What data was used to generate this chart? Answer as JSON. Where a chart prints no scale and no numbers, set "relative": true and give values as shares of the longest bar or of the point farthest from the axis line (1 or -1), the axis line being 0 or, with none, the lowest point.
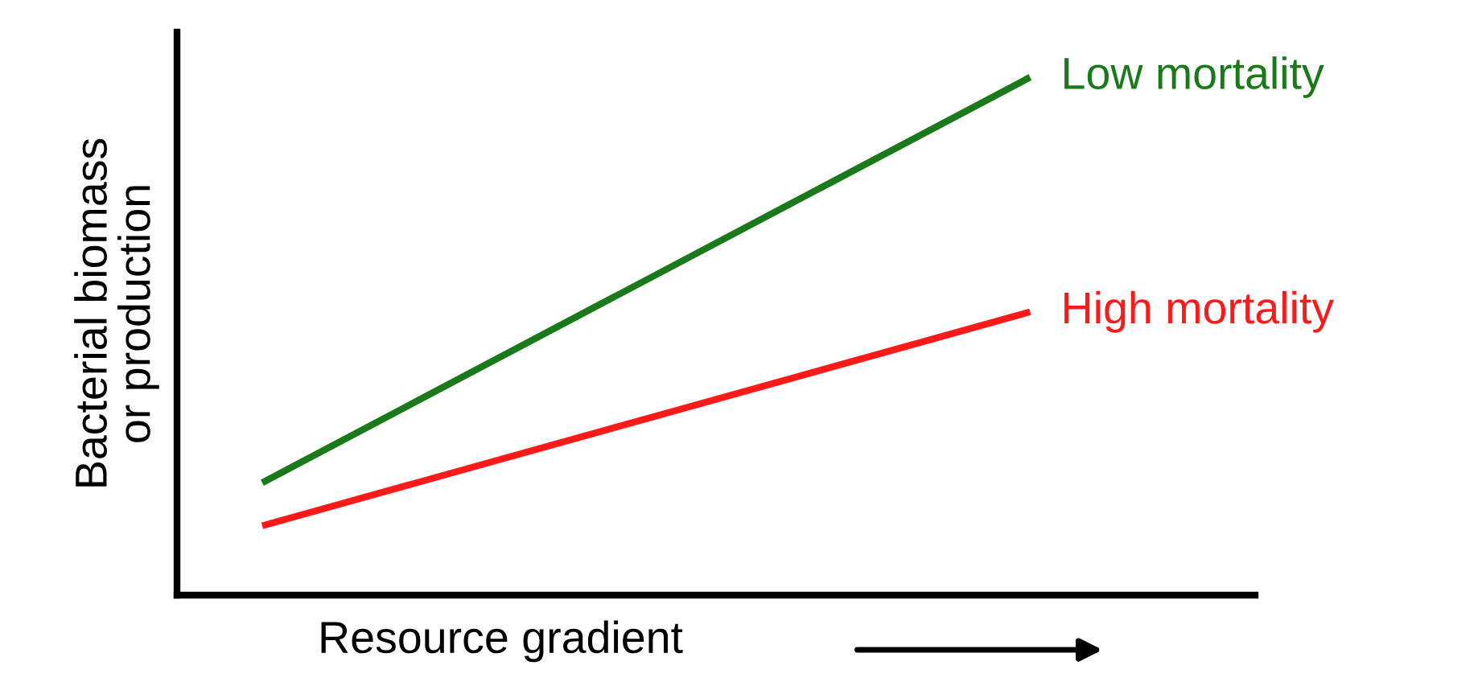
{
  "chart_data": {
    "type": "line",
    "relative": true,
    "xlabel": "Resource gradient",
    "ylabel": "Bacterial biomass\nor production",
    "categories": [
      null,
      null
    ],
    "series": [
      {
        "name": "Low mortality",
        "color": "#1a7a1a",
        "values": [
          0.217,
          1
        ]
      },
      {
        "name": "High mortality",
        "color": "#ff1a1a",
        "values": [
          0.134,
          0.547
        ]
      }
    ],
    "legend": false,
    "marker": "none",
    "line_style": "solid"
  }
}
